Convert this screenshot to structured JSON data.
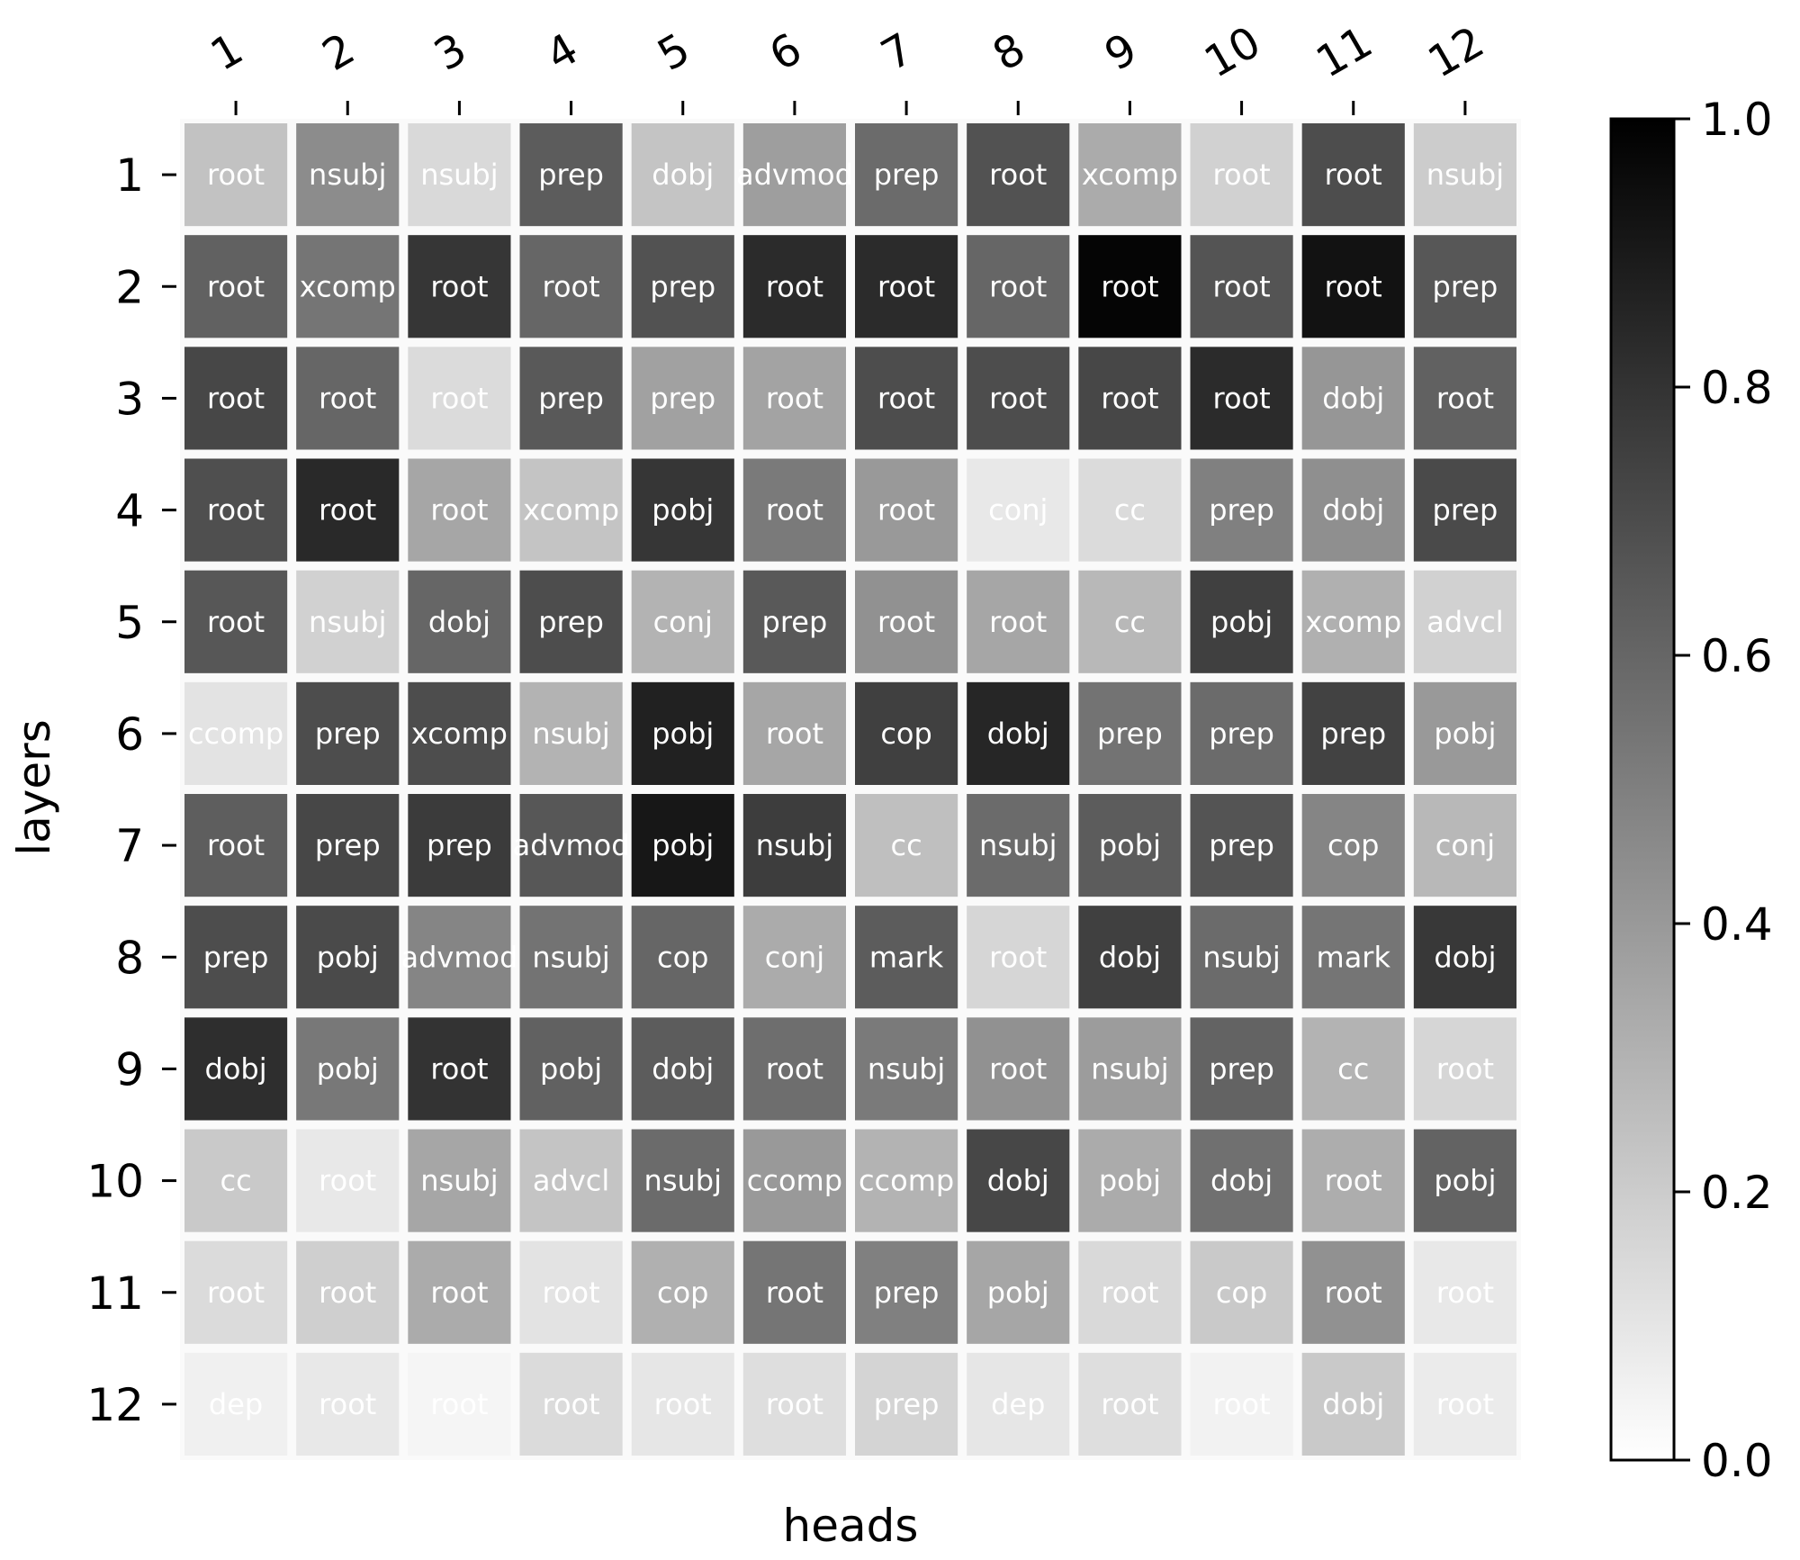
{
  "chart_data": {
    "type": "heatmap",
    "title": "",
    "xlabel": "heads",
    "ylabel": "layers",
    "x_ticks": [
      "1",
      "2",
      "3",
      "4",
      "5",
      "6",
      "7",
      "8",
      "9",
      "10",
      "11",
      "12"
    ],
    "y_ticks": [
      "1",
      "2",
      "3",
      "4",
      "5",
      "6",
      "7",
      "8",
      "9",
      "10",
      "11",
      "12"
    ],
    "colorbar": {
      "range": [
        0.0,
        1.0
      ],
      "ticks": [
        "0.0",
        "0.2",
        "0.4",
        "0.6",
        "0.8",
        "1.0"
      ],
      "colormap": "greys",
      "low_color": "#ffffff",
      "high_color": "#000000"
    },
    "cell_text_color": "#ffffff",
    "labels": [
      [
        "root",
        "nsubj",
        "nsubj",
        "prep",
        "dobj",
        "advmod",
        "prep",
        "root",
        "xcomp",
        "root",
        "root",
        "nsubj"
      ],
      [
        "root",
        "xcomp",
        "root",
        "root",
        "prep",
        "root",
        "root",
        "root",
        "root",
        "root",
        "root",
        "prep"
      ],
      [
        "root",
        "root",
        "root",
        "prep",
        "prep",
        "root",
        "root",
        "root",
        "root",
        "root",
        "dobj",
        "root"
      ],
      [
        "root",
        "root",
        "root",
        "xcomp",
        "pobj",
        "root",
        "root",
        "conj",
        "cc",
        "prep",
        "dobj",
        "prep"
      ],
      [
        "root",
        "nsubj",
        "dobj",
        "prep",
        "conj",
        "prep",
        "root",
        "root",
        "cc",
        "pobj",
        "xcomp",
        "advcl"
      ],
      [
        "ccomp",
        "prep",
        "xcomp",
        "nsubj",
        "pobj",
        "root",
        "cop",
        "dobj",
        "prep",
        "prep",
        "prep",
        "pobj"
      ],
      [
        "root",
        "prep",
        "prep",
        "advmod",
        "pobj",
        "nsubj",
        "cc",
        "nsubj",
        "pobj",
        "prep",
        "cop",
        "conj"
      ],
      [
        "prep",
        "pobj",
        "advmod",
        "nsubj",
        "cop",
        "conj",
        "mark",
        "root",
        "dobj",
        "nsubj",
        "mark",
        "dobj"
      ],
      [
        "dobj",
        "pobj",
        "root",
        "pobj",
        "dobj",
        "root",
        "nsubj",
        "root",
        "nsubj",
        "prep",
        "cc",
        "root"
      ],
      [
        "cc",
        "root",
        "nsubj",
        "advcl",
        "nsubj",
        "ccomp",
        "ccomp",
        "dobj",
        "pobj",
        "dobj",
        "root",
        "pobj"
      ],
      [
        "root",
        "root",
        "root",
        "root",
        "cop",
        "root",
        "prep",
        "pobj",
        "root",
        "cop",
        "root",
        "root"
      ],
      [
        "dep",
        "root",
        "root",
        "root",
        "root",
        "root",
        "prep",
        "dep",
        "root",
        "root",
        "dobj",
        "root"
      ]
    ],
    "values": [
      [
        0.24,
        0.45,
        0.15,
        0.64,
        0.23,
        0.38,
        0.58,
        0.68,
        0.33,
        0.18,
        0.7,
        0.2
      ],
      [
        0.62,
        0.54,
        0.79,
        0.6,
        0.68,
        0.83,
        0.83,
        0.6,
        0.98,
        0.67,
        0.93,
        0.66
      ],
      [
        0.72,
        0.6,
        0.14,
        0.65,
        0.37,
        0.36,
        0.7,
        0.7,
        0.72,
        0.83,
        0.41,
        0.62
      ],
      [
        0.69,
        0.84,
        0.35,
        0.23,
        0.79,
        0.52,
        0.4,
        0.09,
        0.14,
        0.5,
        0.44,
        0.71
      ],
      [
        0.66,
        0.18,
        0.6,
        0.7,
        0.3,
        0.65,
        0.43,
        0.35,
        0.28,
        0.75,
        0.31,
        0.18
      ],
      [
        0.11,
        0.7,
        0.7,
        0.3,
        0.87,
        0.35,
        0.75,
        0.85,
        0.55,
        0.58,
        0.74,
        0.4
      ],
      [
        0.63,
        0.72,
        0.77,
        0.66,
        0.91,
        0.76,
        0.25,
        0.58,
        0.64,
        0.67,
        0.48,
        0.28
      ],
      [
        0.7,
        0.71,
        0.48,
        0.55,
        0.6,
        0.33,
        0.64,
        0.16,
        0.75,
        0.58,
        0.54,
        0.78
      ],
      [
        0.82,
        0.53,
        0.8,
        0.62,
        0.64,
        0.57,
        0.52,
        0.43,
        0.39,
        0.61,
        0.3,
        0.16
      ],
      [
        0.21,
        0.09,
        0.35,
        0.23,
        0.58,
        0.4,
        0.3,
        0.72,
        0.33,
        0.56,
        0.32,
        0.61
      ],
      [
        0.14,
        0.19,
        0.33,
        0.11,
        0.31,
        0.54,
        0.5,
        0.35,
        0.15,
        0.21,
        0.43,
        0.09
      ],
      [
        0.06,
        0.09,
        0.04,
        0.14,
        0.1,
        0.13,
        0.17,
        0.1,
        0.13,
        0.05,
        0.21,
        0.08
      ]
    ]
  }
}
